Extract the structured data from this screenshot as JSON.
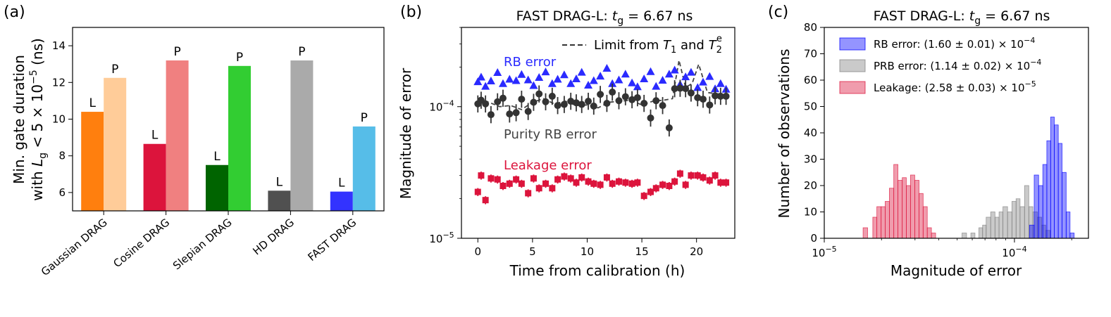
{
  "figure": {
    "panel_labels": [
      "(a)",
      "(b)",
      "(c)"
    ]
  },
  "chart_data": [
    {
      "panel": "(a)",
      "type": "bar",
      "title": "",
      "xlabel": "",
      "ylabel_line1": "Min. gate duration",
      "ylabel_line2": "with L_g < 5 × 10^−5 (ns)",
      "ylabel_parts": {
        "pre": "with ",
        "L": "L",
        "sub": "g",
        "mid": " < 5 × 10",
        "sup": "−5",
        "post": " (ns)"
      },
      "ylim": [
        5,
        15
      ],
      "yticks": [
        6,
        8,
        10,
        12,
        14
      ],
      "grid": false,
      "categories": [
        "Gaussian DRAG",
        "Cosine DRAG",
        "Slepian DRAG",
        "HD DRAG",
        "FAST DRAG"
      ],
      "series": [
        {
          "name": "L",
          "values": [
            10.4,
            8.65,
            7.5,
            6.1,
            6.05
          ],
          "colors": [
            "#ff7f0e",
            "#dc143c",
            "#006400",
            "#505050",
            "#3333ff"
          ]
        },
        {
          "name": "P",
          "values": [
            12.25,
            13.2,
            12.9,
            13.2,
            9.6
          ],
          "colors": [
            "#ffcc99",
            "#f08080",
            "#32cd32",
            "#aaaaaa",
            "#56bde8"
          ]
        }
      ]
    },
    {
      "panel": "(b)",
      "type": "scatter",
      "title": "FAST DRAG-L: t_g = 6.67 ns",
      "title_parts": {
        "pre": "FAST DRAG-L: ",
        "t": "t",
        "sub": "g",
        "post": " = 6.67 ns"
      },
      "xlabel": "Time from calibration (h)",
      "ylabel": "Magnitude of error",
      "yscale": "log",
      "xlim": [
        -1.5,
        23.5
      ],
      "ylim": [
        1e-05,
        0.0004
      ],
      "xticks": [
        0,
        5,
        10,
        15,
        20
      ],
      "yticks": [
        {
          "value": 1e-05,
          "base": "10",
          "exp": "−5"
        },
        {
          "value": 0.0001,
          "base": "10",
          "exp": "−4"
        }
      ],
      "legend": {
        "position": "top-right",
        "entry_parts": {
          "pre": "Limit from ",
          "T1": "T",
          "T1sub": "1",
          "and": " and ",
          "T2": "T",
          "T2sub": "2",
          "T2sup": "e"
        }
      },
      "annotations": [
        "RB error",
        "Purity RB error",
        "Leakage error"
      ],
      "x": [
        0.0,
        0.3,
        0.7,
        1.2,
        1.8,
        2.3,
        2.9,
        3.5,
        4.0,
        4.6,
        5.1,
        5.6,
        6.2,
        6.8,
        7.3,
        7.9,
        8.5,
        9.0,
        9.5,
        10.1,
        10.6,
        11.2,
        11.8,
        12.3,
        12.9,
        13.5,
        14.1,
        14.6,
        15.2,
        15.8,
        16.3,
        16.9,
        17.5,
        18.0,
        18.5,
        19.0,
        19.5,
        20.1,
        20.6,
        21.2,
        21.7,
        22.2,
        22.7
      ],
      "series": [
        {
          "name": "RB error",
          "marker": "triangle",
          "color": "#2a2aff",
          "values": [
            0.000155,
            0.000168,
            0.000143,
            0.000157,
            0.000182,
            0.00015,
            0.000162,
            0.000158,
            0.000176,
            0.00016,
            0.000145,
            0.000167,
            0.000184,
            0.00015,
            0.000162,
            0.000175,
            0.00015,
            0.000163,
            0.000183,
            0.000146,
            0.000158,
            0.000171,
            0.000196,
            0.00015,
            0.00016,
            0.000177,
            0.000152,
            0.000142,
            0.000163,
            0.000185,
            0.000143,
            0.000159,
            0.000177,
            0.00019,
            0.000148,
            0.000169,
            0.000183,
            0.00014,
            0.000154,
            0.00017,
            0.000137,
            0.00015,
            0.000136
          ]
        },
        {
          "name": "Purity RB error",
          "marker": "circle",
          "color": "#333333",
          "values": [
            0.000105,
            0.000112,
            0.000105,
            8.7e-05,
            0.000109,
            0.000116,
            8.8e-05,
            9e-05,
            0.000114,
            9.2e-05,
            0.000108,
            0.000125,
            0.000109,
            0.00012,
            0.000102,
            0.000104,
            0.00011,
            0.000107,
            0.000104,
            0.00011,
            0.000101,
            0.000124,
            0.000106,
            0.000129,
            0.000111,
            0.000119,
            0.000113,
            0.000117,
            0.000106,
            8.2e-05,
            0.000111,
            0.000102,
            6.9e-05,
            0.000137,
            0.000138,
            0.000137,
            0.000127,
            0.000117,
            0.000114,
            0.000103,
            0.000121,
            0.00012,
            0.00012
          ]
        },
        {
          "name": "Leakage error",
          "marker": "square",
          "color": "#dc143c",
          "values": [
            2.25e-05,
            3e-05,
            1.95e-05,
            2.85e-05,
            2.8e-05,
            2.5e-05,
            2.6e-05,
            2.8e-05,
            2.6e-05,
            2.2e-05,
            2.85e-05,
            2.4e-05,
            2.6e-05,
            2.4e-05,
            2.8e-05,
            2.95e-05,
            2.85e-05,
            2.65e-05,
            2.9e-05,
            2.7e-05,
            2.6e-05,
            2.55e-05,
            2.9e-05,
            2.6e-05,
            2.7e-05,
            2.65e-05,
            2.6e-05,
            2.65e-05,
            2.1e-05,
            2.25e-05,
            2.4e-05,
            2.55e-05,
            2.5e-05,
            2.7e-05,
            3.1e-05,
            2.55e-05,
            3e-05,
            3e-05,
            2.9e-05,
            2.75e-05,
            3e-05,
            2.65e-05,
            2.65e-05
          ]
        }
      ],
      "limit_line": {
        "name": "Limit from T1 and T2e",
        "x": [
          0,
          1,
          2,
          3,
          4,
          5,
          6,
          7,
          8,
          9,
          10,
          11,
          12,
          13,
          14,
          15,
          16,
          17,
          17.8,
          18.4,
          19,
          19.6,
          20.2,
          21,
          22,
          22.7
        ],
        "values": [
          0.000115,
          0.000108,
          0.0001,
          0.000102,
          9.5e-05,
          0.000108,
          0.000115,
          0.000105,
          0.00011,
          0.000102,
          0.000103,
          9.8e-05,
          0.000108,
          0.00011,
          0.000112,
          0.000103,
          0.00011,
          0.000112,
          0.000115,
          0.000225,
          0.00014,
          0.00015,
          0.00021,
          0.000128,
          0.000125,
          0.00012
        ]
      }
    },
    {
      "panel": "(c)",
      "type": "histogram",
      "title": "FAST DRAG-L: t_g = 6.67 ns",
      "title_parts": {
        "pre": "FAST DRAG-L: ",
        "t": "t",
        "sub": "g",
        "post": " = 6.67 ns"
      },
      "xlabel": "Magnitude of error",
      "ylabel": "Number of observations",
      "xscale": "log",
      "xlim": [
        1e-05,
        0.000245
      ],
      "ylim": [
        0,
        80
      ],
      "yticks": [
        0,
        10,
        20,
        30,
        40,
        50,
        60,
        70,
        80
      ],
      "xticks": [
        {
          "value": 1e-05,
          "base": "10",
          "exp": "−5"
        },
        {
          "value": 0.0001,
          "base": "10",
          "exp": "−4"
        }
      ],
      "legend": {
        "position": "top-right"
      },
      "series": [
        {
          "name": "RB error",
          "legend_text": "RB error: (1.60 ± 0.01) × 10^−4",
          "legend_pre": "RB error: (1.60 ± 0.01) × 10",
          "legend_exp": "−4",
          "color": "#0000ff",
          "bins": [
            [
              0.00012,
              0.000127,
              5
            ],
            [
              0.000127,
              0.000134,
              24
            ],
            [
              0.000134,
              0.000141,
              20
            ],
            [
              0.000141,
              0.000148,
              28
            ],
            [
              0.000148,
              0.000155,
              37
            ],
            [
              0.000155,
              0.000162,
              46
            ],
            [
              0.000162,
              0.00017,
              43
            ],
            [
              0.00017,
              0.000178,
              36
            ],
            [
              0.000178,
              0.000187,
              25
            ],
            [
              0.000187,
              0.000196,
              10
            ],
            [
              0.000196,
              0.000206,
              2
            ]
          ]
        },
        {
          "name": "PRB error",
          "legend_text": "PRB error: (1.14 ± 0.02) × 10^−4",
          "legend_pre": "PRB error: (1.14 ± 0.02) × 10",
          "legend_exp": "−4",
          "color": "#808080",
          "bins": [
            [
              5.3e-05,
              5.6e-05,
              2
            ],
            [
              5.9e-05,
              6.2e-05,
              2
            ],
            [
              6.5e-05,
              6.8e-05,
              4
            ],
            [
              6.8e-05,
              7.1e-05,
              5
            ],
            [
              7.1e-05,
              7.5e-05,
              8
            ],
            [
              7.5e-05,
              7.9e-05,
              10
            ],
            [
              7.9e-05,
              8.3e-05,
              8
            ],
            [
              8.3e-05,
              8.7e-05,
              10
            ],
            [
              8.7e-05,
              9.2e-05,
              12
            ],
            [
              9.2e-05,
              9.7e-05,
              10
            ],
            [
              9.7e-05,
              0.000102,
              14
            ],
            [
              0.000102,
              0.000107,
              15
            ],
            [
              0.000107,
              0.000113,
              12
            ],
            [
              0.000113,
              0.000119,
              20
            ],
            [
              0.000119,
              0.000125,
              12
            ],
            [
              0.000125,
              0.000132,
              10
            ],
            [
              0.000132,
              0.000139,
              8
            ],
            [
              0.000139,
              0.000146,
              5
            ],
            [
              0.000146,
              0.000154,
              3
            ]
          ]
        },
        {
          "name": "Leakage",
          "legend_text": "Leakage: (2.58 ± 0.03) × 10^−5",
          "legend_pre": "Leakage: (2.58 ± 0.03) × 10",
          "legend_exp": "−5",
          "color": "#dc143c",
          "bins": [
            [
              1.6e-05,
              1.69e-05,
              4
            ],
            [
              1.8e-05,
              1.89e-05,
              8
            ],
            [
              1.89e-05,
              1.99e-05,
              12
            ],
            [
              1.99e-05,
              2.09e-05,
              12
            ],
            [
              2.09e-05,
              2.2e-05,
              14
            ],
            [
              2.2e-05,
              2.32e-05,
              19
            ],
            [
              2.32e-05,
              2.44e-05,
              28
            ],
            [
              2.44e-05,
              2.57e-05,
              22
            ],
            [
              2.57e-05,
              2.7e-05,
              23
            ],
            [
              2.7e-05,
              2.84e-05,
              20
            ],
            [
              2.84e-05,
              2.99e-05,
              24
            ],
            [
              2.99e-05,
              3.15e-05,
              22
            ],
            [
              3.15e-05,
              3.31e-05,
              17
            ],
            [
              3.31e-05,
              3.48e-05,
              12
            ],
            [
              3.48e-05,
              3.66e-05,
              4
            ],
            [
              3.66e-05,
              3.85e-05,
              2
            ]
          ]
        }
      ]
    }
  ]
}
